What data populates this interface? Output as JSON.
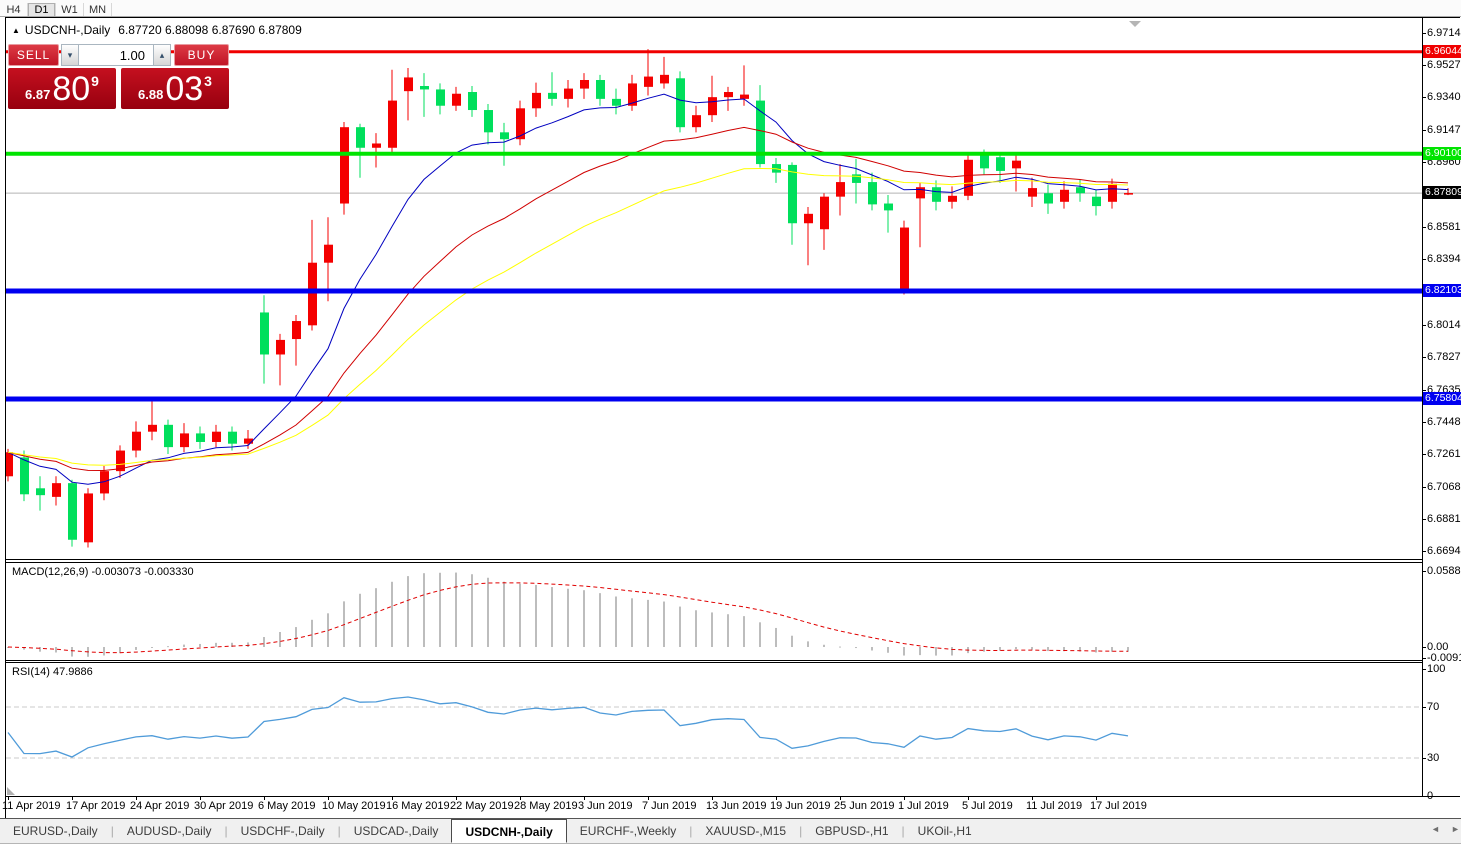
{
  "toolbar": {
    "timeframes": [
      "H4",
      "D1",
      "W1",
      "MN"
    ],
    "active": "D1"
  },
  "icons": {
    "collapse": "▲",
    "spinner_down": "▾",
    "spinner_up": "▴",
    "tab_scroll_left": "◄",
    "tab_scroll_right": "►"
  },
  "chart": {
    "title": {
      "symbol": "USDCNH-,Daily",
      "ohlc": "6.87720 6.88098 6.87690 6.87809"
    },
    "trade_panel": {
      "sell_label": "SELL",
      "buy_label": "BUY",
      "volume": "1.00",
      "bid": {
        "prefix": "6.87",
        "big": "80",
        "sup": "9"
      },
      "ask": {
        "prefix": "6.88",
        "big": "03",
        "sup": "3"
      }
    }
  },
  "chart_data": {
    "type": "candlestick",
    "symbol": "USDCNH-,Daily",
    "title": "USDCNH-,Daily 6.87720 6.88098 6.87690 6.87809",
    "colors": {
      "bull": "#f40000",
      "bear": "#00df5c",
      "background": "#ffffff"
    },
    "y_axis": {
      "tick_labels": [
        "6.97140",
        "6.95270",
        "6.93400",
        "6.91475",
        "6.89605",
        "6.85810",
        "6.83940",
        "6.80145",
        "6.78275",
        "6.76350",
        "6.74480",
        "6.72610",
        "6.70685",
        "6.68815",
        "6.66945"
      ],
      "max": 6.9714,
      "min": 6.66945
    },
    "x_axis": {
      "labels": [
        "11 Apr 2019",
        "17 Apr 2019",
        "24 Apr 2019",
        "30 Apr 2019",
        "6 May 2019",
        "10 May 2019",
        "16 May 2019",
        "22 May 2019",
        "28 May 2019",
        "3 Jun 2019",
        "7 Jun 2019",
        "13 Jun 2019",
        "19 Jun 2019",
        "25 Jun 2019",
        "1 Jul 2019",
        "5 Jul 2019",
        "11 Jul 2019",
        "17 Jul 2019"
      ],
      "label_indices": [
        0,
        4,
        8,
        12,
        16,
        20,
        24,
        28,
        32,
        36,
        40,
        44,
        48,
        52,
        56,
        60,
        64,
        68
      ]
    },
    "horizontal_lines": [
      {
        "price": 6.96044,
        "label": "6.96044",
        "color": "#f00000",
        "width": 3
      },
      {
        "price": 6.901,
        "label": "6.90100",
        "color": "#00e400",
        "width": 4
      },
      {
        "price": 6.82103,
        "label": "6.82103",
        "color": "#0000f0",
        "width": 5
      },
      {
        "price": 6.75804,
        "label": "6.75804",
        "color": "#0000f0",
        "width": 5
      }
    ],
    "current_price": {
      "value": 6.87809,
      "label": "6.87809",
      "line_color": "#b3b3b3",
      "chip_color": "#000000"
    },
    "moving_averages": [
      {
        "name": "ma-fast",
        "period": 10,
        "color": "#0000c0"
      },
      {
        "name": "ma-medium",
        "period": 22,
        "color": "#d00000"
      },
      {
        "name": "ma-slow",
        "period": 34,
        "color": "#ffff00"
      }
    ],
    "candles": {
      "columns": [
        "date",
        "open",
        "high",
        "low",
        "close"
      ],
      "rows": [
        [
          "2019.04.11",
          6.713,
          6.729,
          6.71,
          6.727
        ],
        [
          "2019.04.12",
          6.724,
          6.728,
          6.6985,
          6.7025
        ],
        [
          "2019.04.15",
          6.706,
          6.713,
          6.693,
          6.702
        ],
        [
          "2019.04.16",
          6.701,
          6.713,
          6.696,
          6.709
        ],
        [
          "2019.04.17",
          6.709,
          6.711,
          6.672,
          6.676
        ],
        [
          "2019.04.18",
          6.6745,
          6.706,
          6.6715,
          6.703
        ],
        [
          "2019.04.22",
          6.703,
          6.719,
          6.699,
          6.716
        ],
        [
          "2019.04.23",
          6.716,
          6.731,
          6.712,
          6.728
        ],
        [
          "2019.04.24",
          6.728,
          6.745,
          6.724,
          6.739
        ],
        [
          "2019.04.25",
          6.739,
          6.758,
          6.734,
          6.743
        ],
        [
          "2019.04.26",
          6.743,
          6.746,
          6.726,
          6.73
        ],
        [
          "2019.04.29",
          6.73,
          6.744,
          6.727,
          6.738
        ],
        [
          "2019.04.30",
          6.738,
          6.742,
          6.729,
          6.733
        ],
        [
          "2019.05.01",
          6.733,
          6.743,
          6.73,
          6.739
        ],
        [
          "2019.05.02",
          6.739,
          6.742,
          6.728,
          6.732
        ],
        [
          "2019.05.03",
          6.732,
          6.74,
          6.729,
          6.735
        ],
        [
          "2019.05.06",
          6.8085,
          6.8185,
          6.767,
          6.784
        ],
        [
          "2019.05.07",
          6.784,
          6.796,
          6.766,
          6.7925
        ],
        [
          "2019.05.08",
          6.793,
          6.807,
          6.7775,
          6.8035
        ],
        [
          "2019.05.09",
          6.801,
          6.8625,
          6.798,
          6.8375
        ],
        [
          "2019.05.10",
          6.8375,
          6.864,
          6.815,
          6.848
        ],
        [
          "2019.05.13",
          6.872,
          6.9195,
          6.8655,
          6.9165
        ],
        [
          "2019.05.14",
          6.9165,
          6.9185,
          6.887,
          6.9045
        ],
        [
          "2019.05.15",
          6.9045,
          6.913,
          6.893,
          6.907
        ],
        [
          "2019.05.16",
          6.9045,
          6.95,
          6.901,
          6.932
        ],
        [
          "2019.05.17",
          6.9375,
          6.951,
          6.9205,
          6.9455
        ],
        [
          "2019.05.20",
          6.9405,
          6.948,
          6.9225,
          6.9385
        ],
        [
          "2019.05.21",
          6.9385,
          6.942,
          6.924,
          6.929
        ],
        [
          "2019.05.22",
          6.929,
          6.94,
          6.926,
          6.936
        ],
        [
          "2019.05.23",
          6.937,
          6.9405,
          6.9225,
          6.9265
        ],
        [
          "2019.05.24",
          6.9265,
          6.93,
          6.9065,
          6.9135
        ],
        [
          "2019.05.27",
          6.9135,
          6.919,
          6.894,
          6.9095
        ],
        [
          "2019.05.28",
          6.9095,
          6.932,
          6.906,
          6.9275
        ],
        [
          "2019.05.29",
          6.9275,
          6.9425,
          6.9225,
          6.9365
        ],
        [
          "2019.05.30",
          6.9365,
          6.9485,
          6.929,
          6.933
        ],
        [
          "2019.05.31",
          6.933,
          6.944,
          6.928,
          6.939
        ],
        [
          "2019.06.03",
          6.939,
          6.948,
          6.933,
          6.944
        ],
        [
          "2019.06.04",
          6.944,
          6.947,
          6.929,
          6.933
        ],
        [
          "2019.06.05",
          6.933,
          6.939,
          6.924,
          6.929
        ],
        [
          "2019.06.06",
          6.929,
          6.947,
          6.926,
          6.942
        ],
        [
          "2019.06.07",
          6.94,
          6.962,
          6.935,
          6.946
        ],
        [
          "2019.06.10",
          6.942,
          6.9575,
          6.939,
          6.947
        ],
        [
          "2019.06.11",
          6.945,
          6.949,
          6.9135,
          6.9165
        ],
        [
          "2019.06.12",
          6.9165,
          6.929,
          6.9135,
          6.9235
        ],
        [
          "2019.06.13",
          6.9235,
          6.9465,
          6.9195,
          6.934
        ],
        [
          "2019.06.14",
          6.934,
          6.94,
          6.926,
          6.937
        ],
        [
          "2019.06.17",
          6.933,
          6.9525,
          6.929,
          6.9355
        ],
        [
          "2019.06.18",
          6.932,
          6.941,
          6.893,
          6.895
        ],
        [
          "2019.06.19",
          6.895,
          6.8985,
          6.884,
          6.89
        ],
        [
          "2019.06.20",
          6.8945,
          6.896,
          6.848,
          6.8605
        ],
        [
          "2019.06.21",
          6.8605,
          6.87,
          6.836,
          6.866
        ],
        [
          "2019.06.24",
          6.857,
          6.878,
          6.845,
          6.876
        ],
        [
          "2019.06.25",
          6.876,
          6.895,
          6.865,
          6.8845
        ],
        [
          "2019.06.26",
          6.889,
          6.898,
          6.872,
          6.884
        ],
        [
          "2019.06.27",
          6.8845,
          6.89,
          6.868,
          6.8715
        ],
        [
          "2019.06.28",
          6.872,
          6.877,
          6.855,
          6.868
        ],
        [
          "2019.07.01",
          6.822,
          6.862,
          6.819,
          6.858
        ],
        [
          "2019.07.02",
          6.875,
          6.884,
          6.8465,
          6.8815
        ],
        [
          "2019.07.03",
          6.8815,
          6.8855,
          6.868,
          6.873
        ],
        [
          "2019.07.04",
          6.873,
          6.882,
          6.869,
          6.8765
        ],
        [
          "2019.07.05",
          6.8765,
          6.902,
          6.874,
          6.8975
        ],
        [
          "2019.07.08",
          6.9,
          6.9035,
          6.889,
          6.8925
        ],
        [
          "2019.07.09",
          6.899,
          6.901,
          6.884,
          6.891
        ],
        [
          "2019.07.10",
          6.8925,
          6.9,
          6.879,
          6.897
        ],
        [
          "2019.07.11",
          6.876,
          6.887,
          6.87,
          6.881
        ],
        [
          "2019.07.12",
          6.878,
          6.883,
          6.866,
          6.872
        ],
        [
          "2019.07.15",
          6.873,
          6.885,
          6.869,
          6.88
        ],
        [
          "2019.07.16",
          6.8815,
          6.886,
          6.873,
          6.878
        ],
        [
          "2019.07.17",
          6.876,
          6.88,
          6.865,
          6.8705
        ],
        [
          "2019.07.18",
          6.873,
          6.8865,
          6.869,
          6.8835
        ],
        [
          "2019.07.19",
          6.8772,
          6.881,
          6.8769,
          6.8781
        ]
      ]
    },
    "indicators": {
      "macd": {
        "name": "MACD",
        "params": "(12,26,9)",
        "value_main": "-0.003073",
        "value_signal": "-0.003330",
        "fast": 12,
        "slow": 26,
        "signal": 9,
        "axis_labels": [
          "0.058851",
          "0.00",
          "-0.009116"
        ],
        "axis_max": 0.058851,
        "axis_min": -0.009116,
        "histogram_color": "#bdbdbd",
        "signal_color": "#e00000"
      },
      "rsi": {
        "name": "RSI",
        "params": "(14)",
        "value": "47.9886",
        "period": 14,
        "levels": [
          70,
          30
        ],
        "axis_labels": [
          "100",
          "70",
          "30",
          "0"
        ],
        "line_color": "#4f9bd9",
        "level_color": "#cbcbcb"
      }
    }
  },
  "tabs": {
    "items": [
      "EURUSD-,Daily",
      "AUDUSD-,Daily",
      "USDCHF-,Daily",
      "USDCAD-,Daily",
      "USDCNH-,Daily",
      "EURCHF-,Weekly",
      "XAUUSD-,M15",
      "GBPUSD-,H1",
      "UKOil-,H1"
    ],
    "active_index": 4
  }
}
